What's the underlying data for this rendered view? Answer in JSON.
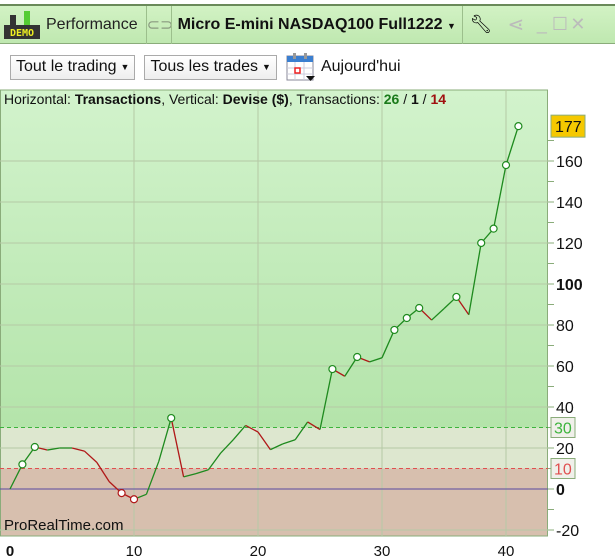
{
  "titlebar": {
    "demo_badge": "DEMO",
    "module": "Performance",
    "instrument": "Micro E-mini NASDAQ100 Full1222",
    "icons": [
      "demo-icon",
      "link-icon",
      "wrench-icon",
      "share-icon",
      "minimize-icon",
      "maximize-icon",
      "close-icon"
    ]
  },
  "toolbar": {
    "scope": "Tout le trading",
    "trades": "Tous les trades",
    "date": "Aujourd'hui"
  },
  "info": {
    "h_label": "Horizontal: ",
    "h_value": "Transactions",
    "v_label": ", Vertical: ",
    "v_value": "Devise ($)",
    "t_label": ", Transactions: ",
    "winners": "26",
    "neutral": "1",
    "losers": "14",
    "sep": " / "
  },
  "watermark": "ProRealTime.com",
  "colors": {
    "up": "#1e8a1e",
    "down": "#b01818",
    "zero": "#5a4aa0",
    "level_high": "#3cb43c",
    "level_low": "#e05050"
  },
  "chart_data": {
    "type": "line",
    "xlabel": "Transactions",
    "ylabel": "Devise ($)",
    "xlim": [
      0,
      43
    ],
    "ylim": [
      -25,
      192
    ],
    "xticks": [
      "0",
      "10",
      "20",
      "30",
      "40"
    ],
    "yticks": [
      "-20",
      "0",
      "20",
      "40",
      "60",
      "80",
      "100",
      "120",
      "140",
      "160"
    ],
    "x": [
      0,
      1,
      2,
      3,
      4,
      5,
      6,
      7,
      8,
      9,
      10,
      11,
      12,
      13,
      14,
      15,
      16,
      17,
      18,
      19,
      20,
      21,
      22,
      23,
      24,
      25,
      26,
      27,
      28,
      29,
      30,
      31,
      32,
      33,
      34,
      35,
      36,
      37,
      38,
      39,
      40,
      41
    ],
    "values": [
      0,
      12,
      20.5,
      19,
      20,
      20,
      18.5,
      13,
      3.6,
      -2,
      -5,
      -2.6,
      13.5,
      34.6,
      5.9,
      7.5,
      9.4,
      17.6,
      24,
      31,
      27.8,
      19.2,
      22,
      24,
      32.7,
      29,
      58.5,
      55,
      64.4,
      62,
      64,
      77.6,
      83.4,
      88.3,
      82.4,
      88,
      93.7,
      85,
      120,
      127,
      158,
      177
    ],
    "markers": [
      1,
      2,
      9,
      10,
      13,
      26,
      28,
      31,
      32,
      33,
      36,
      38,
      39,
      40,
      41
    ],
    "last_value": "177",
    "levels": [
      {
        "value": 30,
        "label": "30"
      },
      {
        "value": 10,
        "label": "10"
      }
    ]
  }
}
